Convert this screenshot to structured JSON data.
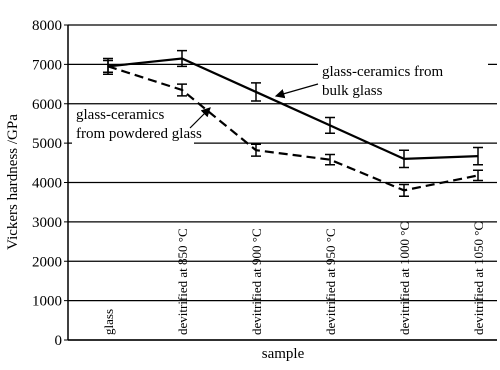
{
  "chart_data": {
    "type": "line",
    "x_label": "sample",
    "y_label": "Vickers hardness /GPa",
    "categories": [
      "glass",
      "devitrified at 850 °C",
      "devitrified at 900 °C",
      "devitrified at 950 °C",
      "devitrified at 1000 °C",
      "devitrified at 1050 °C"
    ],
    "series": [
      {
        "name": "glass-ceramics from bulk glass",
        "color": "#000000",
        "dash": false,
        "values": [
          6950,
          7150,
          6300,
          5450,
          4600,
          4670
        ],
        "errors": [
          200,
          200,
          230,
          200,
          220,
          220
        ]
      },
      {
        "name": "glass-ceramics from powdered glass",
        "color": "#000000",
        "dash": true,
        "values": [
          6950,
          6350,
          4820,
          4580,
          3800,
          4180
        ],
        "errors": [
          150,
          150,
          150,
          130,
          150,
          130
        ]
      }
    ],
    "annotations": [
      {
        "lines": [
          "glass-ceramics from",
          "bulk glass"
        ]
      },
      {
        "lines": [
          "glass-ceramics",
          "from powdered glass"
        ]
      }
    ],
    "ylim": [
      0,
      8000
    ],
    "yticks": [
      0,
      1000,
      2000,
      3000,
      4000,
      5000,
      6000,
      7000,
      8000
    ],
    "grid": true
  }
}
